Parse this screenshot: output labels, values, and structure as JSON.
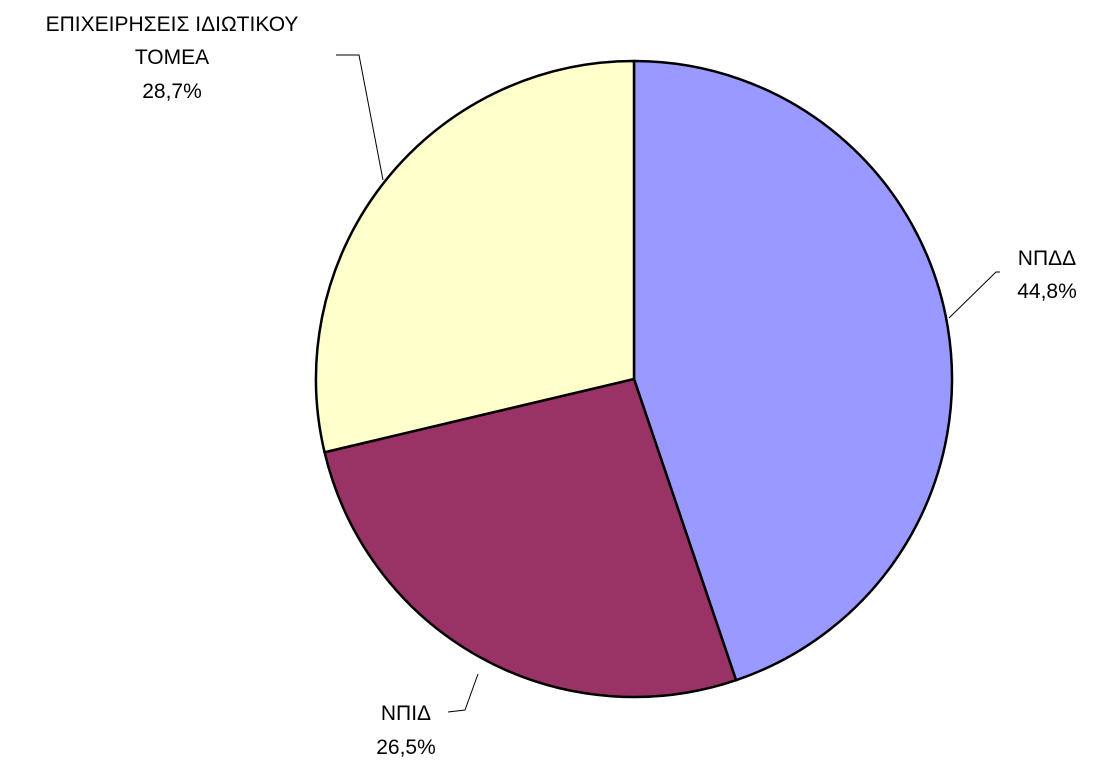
{
  "chart_data": {
    "type": "pie",
    "title": "",
    "start": "12 o'clock",
    "direction": "clockwise",
    "slices": [
      {
        "name": "ΝΠΔΔ",
        "value": 44.8,
        "value_label": "44,8%",
        "color": "#9999ff"
      },
      {
        "name": "ΝΠΙΔ",
        "value": 26.5,
        "value_label": "26,5%",
        "color": "#993366"
      },
      {
        "name": "ΕΠΙΧΕΙΡΗΣΕΙΣ ΙΔΙΩΤΙΚΟΥ ΤΟΜΕΑ",
        "value": 28.7,
        "value_label": "28,7%",
        "color": "#ffffcc",
        "name_lines": [
          "ΕΠΙΧΕΙΡΗΣΕΙΣ ΙΔΙΩΤΙΚΟΥ",
          "ΤΟΜΕΑ"
        ]
      }
    ],
    "legend": "none",
    "data_labels": "outside with leader lines"
  }
}
